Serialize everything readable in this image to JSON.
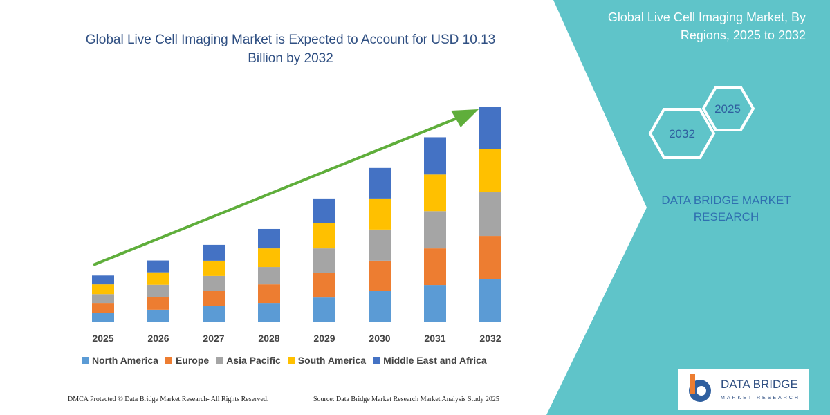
{
  "chart_data": {
    "type": "bar",
    "stacked": true,
    "title": "Global Live Cell Imaging Market is Expected to Account for USD 10.13 Billion by 2032",
    "categories": [
      "2025",
      "2026",
      "2027",
      "2028",
      "2029",
      "2030",
      "2031",
      "2032"
    ],
    "series": [
      {
        "name": "North America",
        "color": "#5b9bd5",
        "values": [
          0.42,
          0.56,
          0.72,
          0.88,
          1.14,
          1.44,
          1.73,
          2.02
        ]
      },
      {
        "name": "Europe",
        "color": "#ed7d31",
        "values": [
          0.46,
          0.59,
          0.72,
          0.88,
          1.18,
          1.44,
          1.73,
          2.03
        ]
      },
      {
        "name": "Asia Pacific",
        "color": "#a5a5a5",
        "values": [
          0.42,
          0.59,
          0.72,
          0.82,
          1.14,
          1.47,
          1.76,
          2.06
        ]
      },
      {
        "name": "South America",
        "color": "#ffc000",
        "values": [
          0.46,
          0.59,
          0.72,
          0.88,
          1.18,
          1.47,
          1.73,
          2.03
        ]
      },
      {
        "name": "Middle East and Africa",
        "color": "#4472c4",
        "values": [
          0.42,
          0.56,
          0.75,
          0.92,
          1.18,
          1.44,
          1.76,
          1.99
        ]
      }
    ],
    "legend_position": "bottom"
  },
  "panel": {
    "title": "Global Live Cell Imaging Market, By Regions, 2025 to 2032",
    "hexagons": [
      "2025",
      "2032"
    ],
    "brand": "DATA BRIDGE MARKET RESEARCH"
  },
  "logo": {
    "name": "DATA BRIDGE",
    "tagline": "MARKET RESEARCH"
  },
  "footer": {
    "left": "DMCA Protected © Data Bridge Market Research-  All Rights Reserved.",
    "right": "Source: Data Bridge Market Research  Market Analysis Study 2025"
  }
}
